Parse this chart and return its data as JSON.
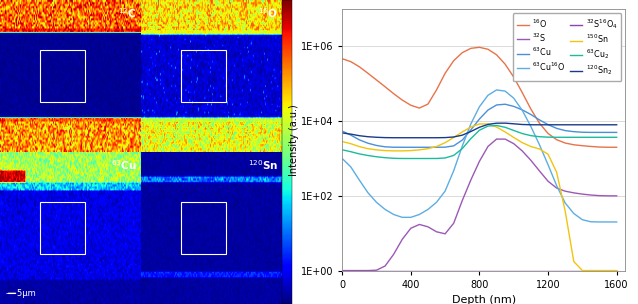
{
  "left_panel": {
    "labels": [
      "$^{12}$C",
      "$^{16}$O",
      "$^{63}$Cu",
      "$^{120}$Sn"
    ],
    "scale_text": "5μm",
    "colormap": "jet"
  },
  "right_panel": {
    "xlabel": "Depth (nm)",
    "ylabel": "Intensity (a.u.)",
    "xlim": [
      0,
      1650
    ],
    "ylim_log": [
      1.0,
      10000000.0
    ],
    "xticks": [
      0,
      400,
      800,
      1200,
      1600
    ],
    "yticks": [
      1.0,
      100.0,
      10000.0,
      1000000.0
    ],
    "yticklabels": [
      "1E+00",
      "1E+02",
      "1E+04",
      "1E+06"
    ],
    "series": [
      {
        "label": "$^{16}$O",
        "color": "#E8734A",
        "x": [
          0,
          50,
          100,
          150,
          200,
          250,
          300,
          350,
          400,
          450,
          500,
          550,
          600,
          650,
          700,
          750,
          800,
          850,
          900,
          950,
          1000,
          1050,
          1100,
          1150,
          1200,
          1250,
          1300,
          1350,
          1400,
          1450,
          1500,
          1550,
          1600
        ],
        "y": [
          500000.0,
          400000.0,
          280000.0,
          180000.0,
          120000.0,
          80000.0,
          50000.0,
          35000.0,
          25000.0,
          20000.0,
          22000.0,
          40000.0,
          150000.0,
          400000.0,
          700000.0,
          950000.0,
          1000000.0,
          900000.0,
          600000.0,
          300000.0,
          120000.0,
          40000.0,
          15000.0,
          7000.0,
          4000.0,
          3000.0,
          2500.0,
          2300.0,
          2200.0,
          2100.0,
          2000.0,
          2000.0,
          2000.0
        ]
      },
      {
        "label": "$^{32}$S",
        "color": "#9B59B6",
        "x": [
          0,
          50,
          100,
          150,
          200,
          250,
          300,
          350,
          400,
          450,
          500,
          550,
          600,
          650,
          700,
          750,
          800,
          850,
          900,
          950,
          1000,
          1050,
          1100,
          1150,
          1200,
          1250,
          1300,
          1350,
          1400,
          1450,
          1500,
          1550,
          1600
        ],
        "y": [
          1,
          1,
          1,
          1,
          1,
          1,
          2,
          5,
          15,
          20,
          15,
          10,
          8,
          10,
          30,
          200,
          500,
          2000,
          4000,
          3500,
          2500,
          1500,
          800,
          400,
          200,
          150,
          130,
          120,
          110,
          105,
          100,
          100,
          100
        ]
      },
      {
        "label": "$^{63}$Cu",
        "color": "#4A90D9",
        "x": [
          0,
          50,
          100,
          150,
          200,
          250,
          300,
          350,
          400,
          450,
          500,
          550,
          600,
          650,
          700,
          750,
          800,
          850,
          900,
          950,
          1000,
          1050,
          1100,
          1150,
          1200,
          1250,
          1300,
          1350,
          1400,
          1450,
          1500,
          1550,
          1600
        ],
        "y": [
          6000,
          4000,
          3000,
          2500,
          2200,
          2000,
          2000,
          2000,
          2000,
          2000,
          2000,
          2000,
          2000,
          2000,
          2500,
          5000,
          10000.0,
          20000.0,
          30000.0,
          30000.0,
          25000.0,
          20000.0,
          15000.0,
          10000.0,
          8000,
          6000,
          5500,
          5200,
          5000,
          5000,
          5000,
          5000,
          5000
        ]
      },
      {
        "label": "$^{63}$Cu$^{16}$O",
        "color": "#5DADE2",
        "x": [
          0,
          50,
          100,
          150,
          200,
          250,
          300,
          350,
          400,
          450,
          500,
          550,
          600,
          650,
          700,
          750,
          800,
          850,
          900,
          950,
          1000,
          1050,
          1100,
          1150,
          1200,
          1250,
          1300,
          1350,
          1400,
          1450,
          1500,
          1550,
          1600
        ],
        "y": [
          1200,
          500,
          200,
          100,
          60,
          40,
          30,
          25,
          25,
          30,
          40,
          60,
          100,
          200,
          1000,
          5000,
          20000.0,
          50000.0,
          80000.0,
          70000.0,
          40000.0,
          15000.0,
          5000,
          1500,
          400,
          100,
          50,
          30,
          20,
          20,
          20,
          20,
          20
        ]
      },
      {
        "label": "$^{32}$S$^{16}$O$_4$",
        "color": "#8E44AD",
        "x": [
          0,
          50,
          100,
          150,
          200,
          250,
          300,
          350,
          400,
          450,
          500,
          550,
          600,
          650,
          700,
          750,
          800,
          850,
          900,
          950,
          1000,
          1050,
          1100,
          1150,
          1200,
          1250,
          1300,
          1350,
          1400,
          1450,
          1500,
          1550,
          1600
        ],
        "y": [
          1,
          1,
          1,
          1,
          1,
          1,
          1,
          1,
          1,
          1,
          1,
          1,
          1,
          1,
          1,
          1,
          1,
          1,
          1,
          1,
          1,
          1,
          1,
          1,
          1,
          1,
          1,
          1,
          1,
          1,
          1,
          1,
          1
        ]
      },
      {
        "label": "$^{150}$Sn",
        "color": "#F1C40F",
        "x": [
          0,
          50,
          100,
          150,
          200,
          250,
          300,
          350,
          400,
          450,
          500,
          550,
          600,
          650,
          700,
          750,
          800,
          850,
          900,
          950,
          1000,
          1050,
          1100,
          1150,
          1200,
          1250,
          1300,
          1350,
          1400,
          1450,
          1500,
          1550,
          1600
        ],
        "y": [
          3000,
          2500,
          2000,
          1800,
          1700,
          1600,
          1600,
          1600,
          1600,
          1700,
          1800,
          2000,
          2500,
          3500,
          5000,
          7000,
          9000,
          9000,
          7000,
          5000,
          3500,
          2500,
          2000,
          1800,
          1700,
          1,
          1,
          1,
          1,
          1,
          1,
          1,
          1
        ]
      },
      {
        "label": "$^{63}$Cu$_2$",
        "color": "#1ABC9C",
        "x": [
          0,
          50,
          100,
          150,
          200,
          250,
          300,
          350,
          400,
          450,
          500,
          550,
          600,
          650,
          700,
          750,
          800,
          850,
          900,
          950,
          1000,
          1050,
          1100,
          1150,
          1200,
          1250,
          1300,
          1350,
          1400,
          1450,
          1500,
          1550,
          1600
        ],
        "y": [
          1800,
          1500,
          1300,
          1200,
          1100,
          1050,
          1000,
          1000,
          1000,
          1000,
          1000,
          1000,
          1000,
          1100,
          1500,
          3000,
          6000,
          8000,
          8000,
          7000,
          5500,
          4500,
          4000,
          3800,
          3700,
          3700,
          3700,
          3700,
          3700,
          3700,
          3700,
          3700,
          3700
        ]
      },
      {
        "label": "$^{120}$Sn$_2$",
        "color": "#1A3A8A",
        "x": [
          0,
          50,
          100,
          150,
          200,
          250,
          300,
          350,
          400,
          450,
          500,
          550,
          600,
          650,
          700,
          750,
          800,
          850,
          900,
          950,
          1000,
          1050,
          1100,
          1150,
          1200,
          1250,
          1300,
          1350,
          1400,
          1450,
          1500,
          1550,
          1600
        ],
        "y": [
          5000,
          4500,
          4000,
          3800,
          3700,
          3600,
          3600,
          3600,
          3600,
          3600,
          3600,
          3600,
          3600,
          3700,
          4000,
          5000,
          7000,
          8500,
          9000,
          9000,
          8500,
          8000,
          8000,
          8000,
          8000,
          8000,
          8000,
          8000,
          8000,
          8000,
          8000,
          8000,
          8000
        ]
      }
    ]
  }
}
